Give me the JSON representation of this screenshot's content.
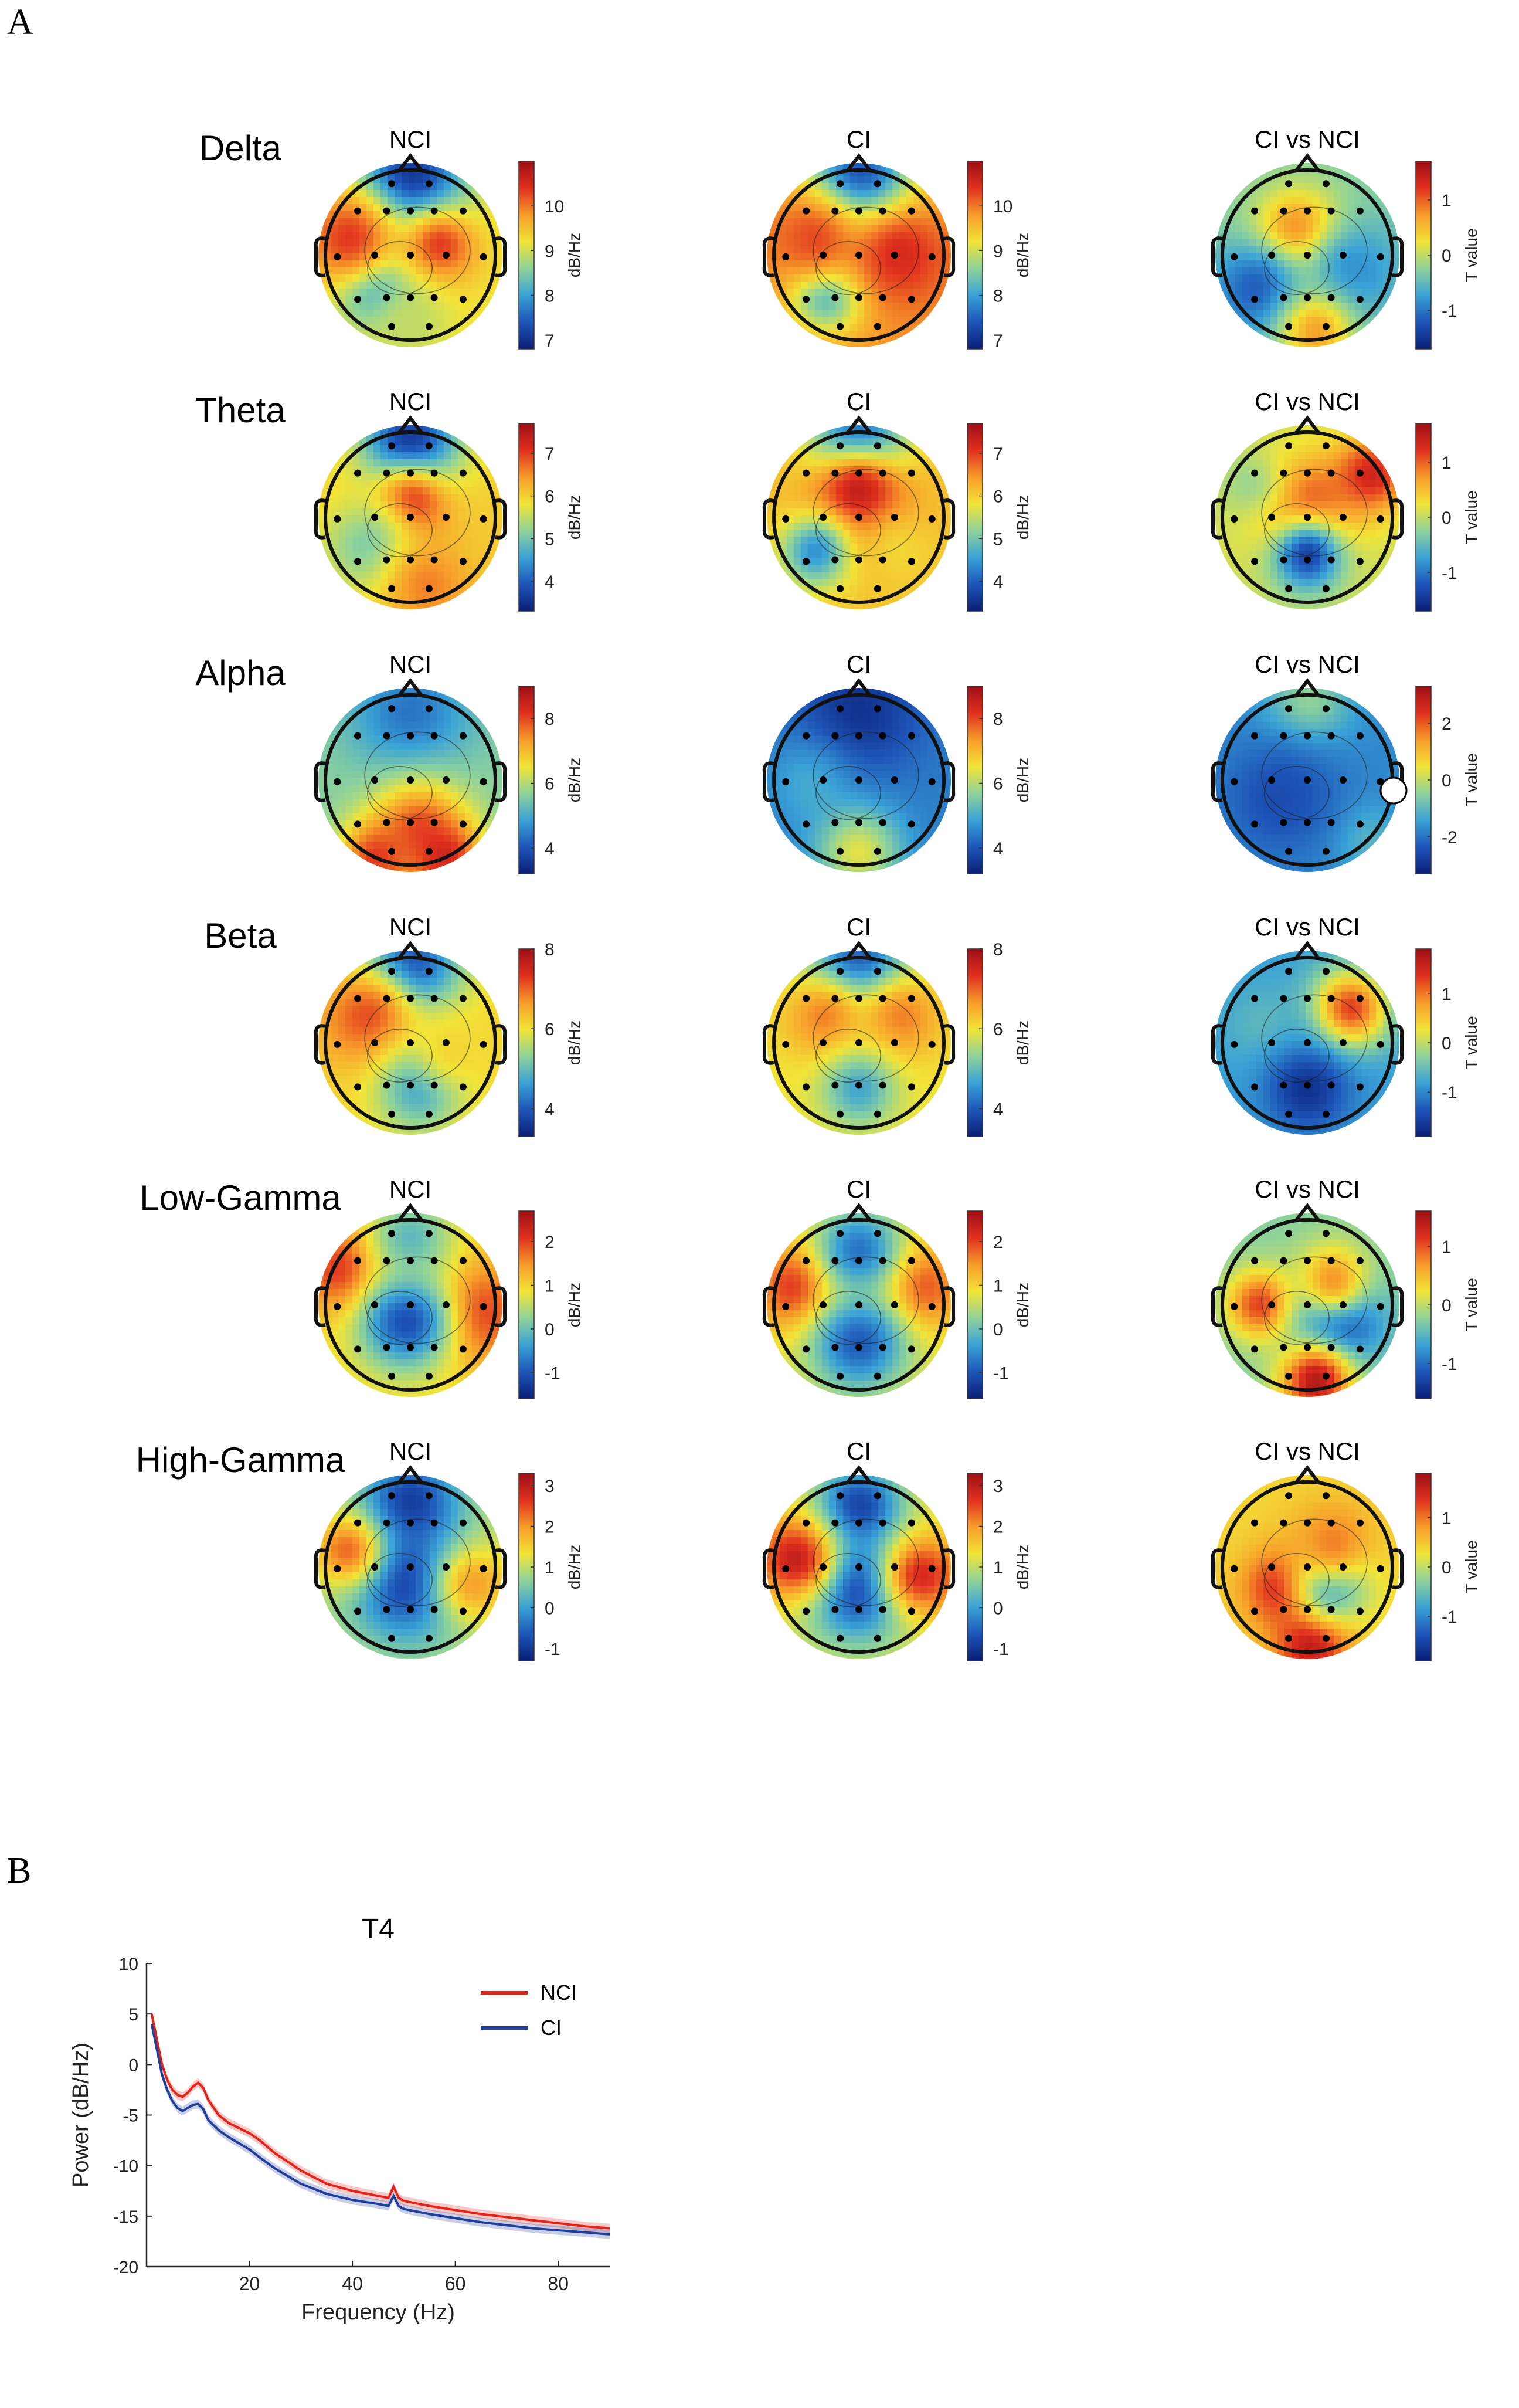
{
  "panels": {
    "a": "A",
    "b": "B"
  },
  "columns": {
    "nci": "NCI",
    "ci": "CI",
    "diff": "CI vs NCI"
  },
  "units": {
    "power": "dB/Hz",
    "tvalue": "T value"
  },
  "colormap": [
    "#0a1e78",
    "#1d55b8",
    "#3aa2d6",
    "#8fd39a",
    "#f2e437",
    "#f79c2a",
    "#e0301e",
    "#9c0e14"
  ],
  "bands": [
    {
      "name": "Delta",
      "scale_power": {
        "min": 6.8,
        "max": 11.0,
        "ticks": [
          "7",
          "8",
          "9",
          "10"
        ],
        "tick_values": [
          7,
          8,
          9,
          10
        ]
      },
      "scale_t": {
        "min": -1.7,
        "max": 1.7,
        "ticks": [
          "-1",
          "0",
          "1"
        ],
        "tick_values": [
          -1,
          0,
          1
        ]
      }
    },
    {
      "name": "Theta",
      "scale_power": {
        "min": 3.3,
        "max": 7.7,
        "ticks": [
          "4",
          "5",
          "6",
          "7"
        ],
        "tick_values": [
          4,
          5,
          6,
          7
        ]
      },
      "scale_t": {
        "min": -1.7,
        "max": 1.7,
        "ticks": [
          "-1",
          "0",
          "1"
        ],
        "tick_values": [
          -1,
          0,
          1
        ]
      }
    },
    {
      "name": "Alpha",
      "scale_power": {
        "min": 3.2,
        "max": 9.0,
        "ticks": [
          "4",
          "6",
          "8"
        ],
        "tick_values": [
          4,
          6,
          8
        ]
      },
      "scale_t": {
        "min": -3.3,
        "max": 3.3,
        "ticks": [
          "-2",
          "0",
          "2"
        ],
        "tick_values": [
          -2,
          0,
          2
        ]
      }
    },
    {
      "name": "Beta",
      "scale_power": {
        "min": 3.3,
        "max": 8.0,
        "ticks": [
          "4",
          "6",
          "8"
        ],
        "tick_values": [
          4,
          6,
          8
        ]
      },
      "scale_t": {
        "min": -1.9,
        "max": 1.9,
        "ticks": [
          "-1",
          "0",
          "1"
        ],
        "tick_values": [
          -1,
          0,
          1
        ]
      }
    },
    {
      "name": "Low-Gamma",
      "scale_power": {
        "min": -1.6,
        "max": 2.7,
        "ticks": [
          "-1",
          "0",
          "1",
          "2"
        ],
        "tick_values": [
          -1,
          0,
          1,
          2
        ]
      },
      "scale_t": {
        "min": -1.6,
        "max": 1.6,
        "ticks": [
          "-1",
          "0",
          "1"
        ],
        "tick_values": [
          -1,
          0,
          1
        ]
      }
    },
    {
      "name": "High-Gamma",
      "scale_power": {
        "min": -1.3,
        "max": 3.3,
        "ticks": [
          "-1",
          "0",
          "1",
          "2",
          "3"
        ],
        "tick_values": [
          -1,
          0,
          1,
          2,
          3
        ]
      },
      "scale_t": {
        "min": -1.9,
        "max": 1.9,
        "ticks": [
          "-1",
          "0",
          "1"
        ],
        "tick_values": [
          -1,
          0,
          1
        ]
      }
    }
  ],
  "chart_data": {
    "type": "line",
    "title": "T4",
    "xlabel": "Frequency (Hz)",
    "ylabel": "Power (dB/Hz)",
    "xlim": [
      0,
      90
    ],
    "ylim": [
      -20,
      10
    ],
    "xticks": [
      20,
      40,
      60,
      80
    ],
    "yticks": [
      10,
      5,
      0,
      -5,
      -10,
      -15,
      -20
    ],
    "legend": "top-right",
    "x": [
      1,
      2,
      3,
      4,
      5,
      6,
      7,
      8,
      9,
      10,
      11,
      12,
      14,
      16,
      18,
      20,
      22,
      25,
      28,
      30,
      35,
      40,
      45,
      47,
      48,
      49,
      50,
      55,
      60,
      65,
      70,
      75,
      80,
      85,
      90
    ],
    "series": [
      {
        "name": "NCI",
        "color": "#e2231a",
        "values": [
          5,
          2.5,
          0,
          -1.5,
          -2.5,
          -3,
          -3.2,
          -2.8,
          -2.2,
          -1.8,
          -2.3,
          -3.5,
          -5,
          -5.8,
          -6.3,
          -6.8,
          -7.5,
          -8.8,
          -9.8,
          -10.5,
          -11.8,
          -12.5,
          -13,
          -13.2,
          -12.1,
          -13.2,
          -13.5,
          -14,
          -14.4,
          -14.8,
          -15.1,
          -15.4,
          -15.7,
          -16,
          -16.2
        ]
      },
      {
        "name": "CI",
        "color": "#1f3d99",
        "values": [
          4,
          1.5,
          -1,
          -2.5,
          -3.6,
          -4.3,
          -4.6,
          -4.3,
          -4,
          -3.9,
          -4.4,
          -5.5,
          -6.5,
          -7.2,
          -7.8,
          -8.4,
          -9.2,
          -10.3,
          -11.2,
          -11.8,
          -12.8,
          -13.4,
          -13.8,
          -14,
          -13,
          -14,
          -14.3,
          -14.8,
          -15.2,
          -15.6,
          -15.9,
          -16.2,
          -16.4,
          -16.6,
          -16.8
        ]
      }
    ]
  }
}
